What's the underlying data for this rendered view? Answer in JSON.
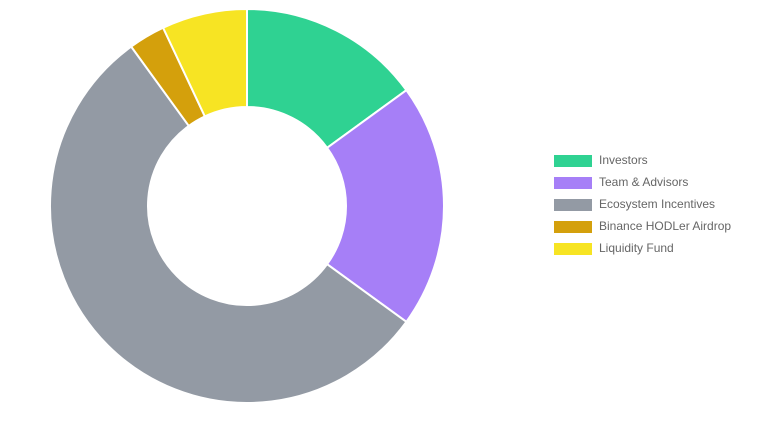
{
  "chart_data": {
    "type": "doughnut",
    "categories": [
      "Investors",
      "Team & Advisors",
      "Ecosystem Incentives",
      "Binance HODLer Airdrop",
      "Liquidity Fund"
    ],
    "values": [
      15,
      20,
      55,
      3,
      7
    ],
    "colors": [
      "#2fd292",
      "#a67ff7",
      "#939aa4",
      "#d4a00c",
      "#f7e423"
    ],
    "legend": "right"
  }
}
